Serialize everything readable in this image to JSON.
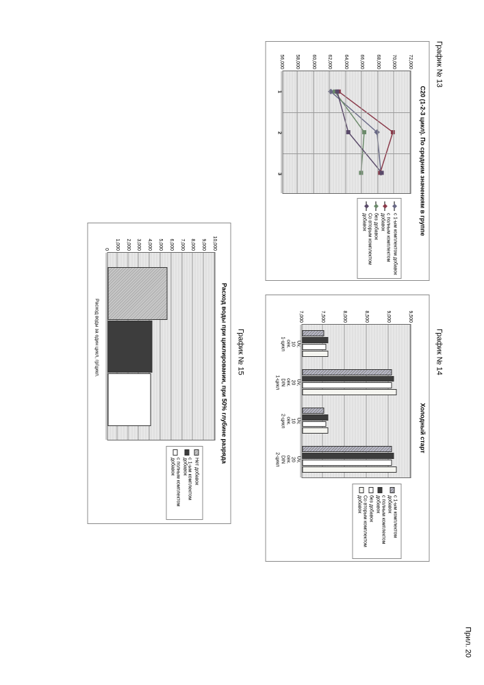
{
  "page_header": "Прил. 20",
  "chart13_label": "График № 13",
  "chart14_label": "График № 14",
  "chart15_label": "График № 15",
  "chart13": {
    "type": "line",
    "title": "C20 (1-2-3 цикл). По средним значениям в группе",
    "ylim": [
      56000,
      72000
    ],
    "ytick_step": 2000,
    "x_categories": [
      "1",
      "2",
      "3"
    ],
    "series": [
      {
        "label": "с 1-ым комплектом добавок",
        "color": "#6a6a87",
        "marker": "diamond",
        "values": [
          62000,
          67800,
          68300
        ]
      },
      {
        "label": "с полным комплектом добавок",
        "color": "#8a3a4a",
        "marker": "square",
        "values": [
          63000,
          69800,
          68200
        ]
      },
      {
        "label": "без добавок",
        "color": "#6b8a6a",
        "marker": "triangle",
        "values": [
          62500,
          66200,
          65800
        ]
      },
      {
        "label": "Со вторым комплектом добавок",
        "color": "#5a4a6a",
        "marker": "square",
        "values": [
          62800,
          64200,
          68400
        ]
      }
    ],
    "background": "#e8e8e8",
    "grid_color": "#999999",
    "axis_fontsize": 7
  },
  "chart14": {
    "type": "bar",
    "title": "Холодный старт",
    "ylim": [
      7000,
      9500
    ],
    "ytick_step": 500,
    "x_categories": [
      "Uv, 10 сек. 1-цикл",
      "Uv, 20 сек. DIN 1-цикл",
      "Uv, 10 сек. 2-цикл",
      "Uv, 20 сек. DIN 2-цикл"
    ],
    "series": [
      {
        "label": "с 1-ым комплектом добавок",
        "color": "#b8b8c8",
        "pattern": "hatch",
        "values": [
          7500,
          9050,
          7500,
          9050
        ]
      },
      {
        "label": "с полным комплектом добавок",
        "color": "#3d3d3d",
        "values": [
          7600,
          9100,
          7600,
          9100
        ]
      },
      {
        "label": "без добавок",
        "color": "#ffffff",
        "values": [
          7550,
          9050,
          7550,
          9050
        ]
      },
      {
        "label": "Со вторым комплектом добавок",
        "color": "#f5f5f0",
        "values": [
          7600,
          9150,
          7600,
          9150
        ]
      }
    ],
    "background": "#e8e8e8",
    "grid_color": "#999999",
    "axis_fontsize": 7
  },
  "chart15": {
    "type": "bar",
    "title": "Расход воды при циклировании, при 50% глубине разряда",
    "ylim": [
      0,
      10000
    ],
    "ytick_step": 1000,
    "x_label": "Расход воды за один цикл, гр/цикл.",
    "series": [
      {
        "label": "Нет добавок",
        "color": "#c8c8c8",
        "pattern": "hatch",
        "value": 5500
      },
      {
        "label": "с 1-ым комплектом добавок",
        "color": "#3d3d3d",
        "value": 4100
      },
      {
        "label": "с полным комплектом добавок",
        "color": "#ffffff",
        "value": 4000
      }
    ],
    "background": "#e8e8e8",
    "grid_color": "#999999",
    "axis_fontsize": 7
  }
}
